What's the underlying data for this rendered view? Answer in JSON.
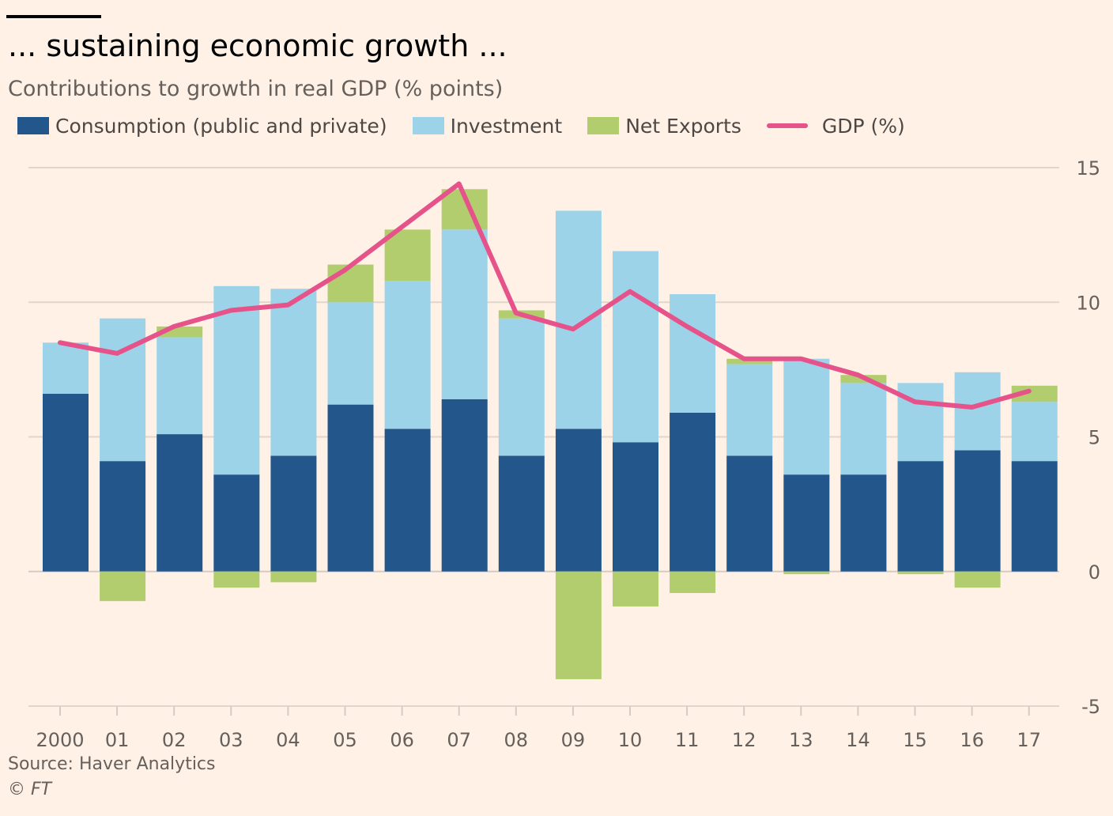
{
  "colors": {
    "background": "#fff1e5",
    "consumption": "#23568b",
    "investment": "#9dd3e9",
    "net_exports": "#b1cd6e",
    "gdp_line": "#e6538a",
    "grid": "#e0d6cc",
    "axis": "#d4cbc2"
  },
  "chart_data": {
    "type": "bar",
    "stacked": true,
    "title": "... sustaining economic growth ...",
    "subtitle": "Contributions to growth in real GDP (% points)",
    "categories": [
      "2000",
      "01",
      "02",
      "03",
      "04",
      "05",
      "06",
      "07",
      "08",
      "09",
      "10",
      "11",
      "12",
      "13",
      "14",
      "15",
      "16",
      "17"
    ],
    "series": [
      {
        "name": "Consumption (public and private)",
        "type": "bar",
        "color": "#23568b",
        "values": [
          6.6,
          4.1,
          5.1,
          3.6,
          4.3,
          6.2,
          5.3,
          6.4,
          4.3,
          5.3,
          4.8,
          5.9,
          4.3,
          3.6,
          3.6,
          4.1,
          4.5,
          4.1
        ]
      },
      {
        "name": "Investment",
        "type": "bar",
        "color": "#9dd3e9",
        "values": [
          1.9,
          5.3,
          3.6,
          7.0,
          6.2,
          3.8,
          5.5,
          6.3,
          5.1,
          8.1,
          7.1,
          4.4,
          3.4,
          4.3,
          3.4,
          2.9,
          2.9,
          2.2
        ]
      },
      {
        "name": "Net Exports",
        "type": "bar",
        "color": "#b1cd6e",
        "values": [
          0.0,
          -1.1,
          0.4,
          -0.6,
          -0.4,
          1.4,
          1.9,
          1.5,
          0.3,
          -4.0,
          -1.3,
          -0.8,
          0.2,
          -0.1,
          0.3,
          -0.1,
          -0.6,
          0.6
        ]
      },
      {
        "name": "GDP (%)",
        "type": "line",
        "color": "#e6538a",
        "values": [
          8.5,
          8.1,
          9.1,
          9.7,
          9.9,
          11.2,
          12.8,
          14.4,
          9.6,
          9.0,
          10.4,
          9.1,
          7.9,
          7.9,
          7.3,
          6.3,
          6.1,
          6.7
        ]
      }
    ],
    "ylim": [
      -5,
      15
    ],
    "yticks": [
      15,
      10,
      5,
      0,
      -5
    ],
    "y_axis_position": "right",
    "grid": true,
    "legend_position": "top-left",
    "source": "Source: Haver Analytics",
    "credit": "© FT"
  }
}
